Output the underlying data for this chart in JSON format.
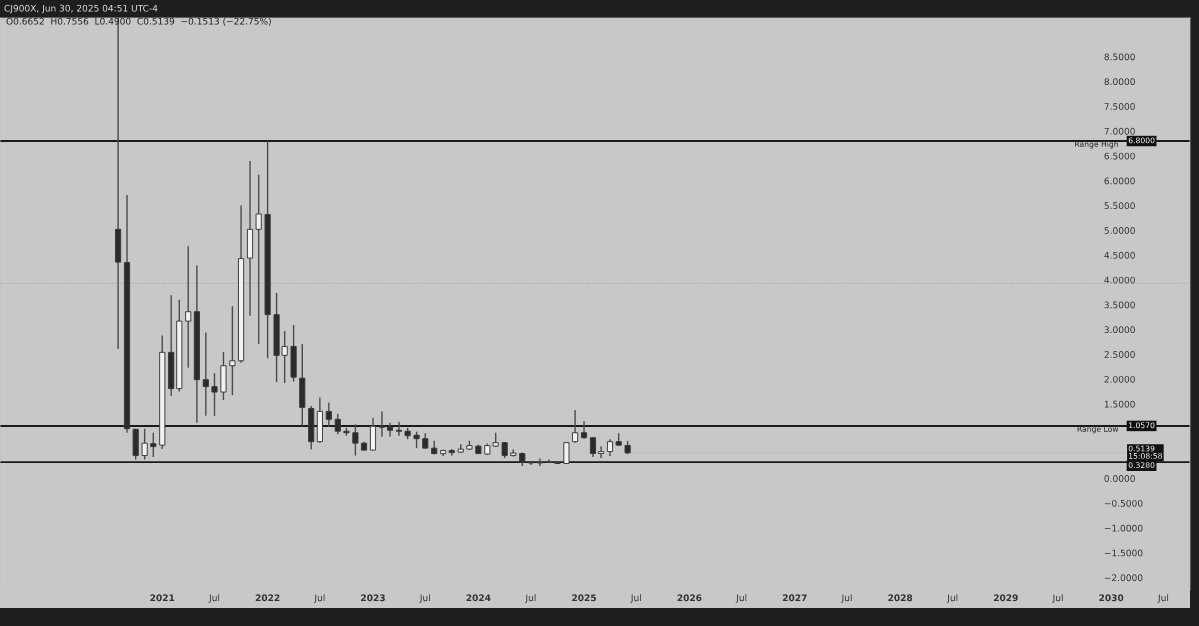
{
  "chart_data": {
    "type": "candlestick",
    "annotations": [
      "CJ900X, Jun 30, 2025 04:51 UTC-4",
      "O0.6652  H0.7556  L0.4900  C0.5139  −0.1513 (−22.75%)",
      {
        "text": "6.8000",
        "x": "2030-03",
        "y": 6.8
      },
      {
        "text": "1.0570",
        "x": "2030-03",
        "y": 1.057
      },
      {
        "text": "0.5139\n15:08:58",
        "x": "2025-06",
        "y": 0.5139
      },
      {
        "text": "0.3280",
        "x": "2030-03",
        "y": 0.328
      }
    ],
    "x": [
      "2020-08",
      "2020-09",
      "2020-10",
      "2020-11",
      "2020-12",
      "2021-01",
      "2021-02",
      "2021-03",
      "2021-04",
      "2021-05",
      "2021-06",
      "2021-07",
      "2021-08",
      "2021-09",
      "2021-10",
      "2021-11",
      "2021-12",
      "2022-01",
      "2022-02",
      "2022-03",
      "2022-04",
      "2022-05",
      "2022-06",
      "2022-07",
      "2022-08",
      "2022-09",
      "2022-10",
      "2022-11",
      "2022-12",
      "2023-01",
      "2023-02",
      "2023-03",
      "2023-04",
      "2023-05",
      "2023-06",
      "2023-07",
      "2023-08",
      "2023-09",
      "2023-10",
      "2023-11",
      "2023-12",
      "2024-01",
      "2024-02",
      "2024-03",
      "2024-04",
      "2024-05",
      "2024-06",
      "2024-07",
      "2024-08",
      "2024-09",
      "2024-10",
      "2024-11",
      "2024-12",
      "2025-01",
      "2025-02",
      "2025-03",
      "2025-04",
      "2025-05",
      "2025-06"
    ],
    "ohlc": [
      [
        5.02,
        9.28,
        2.61,
        4.36
      ],
      [
        4.35,
        5.71,
        0.92,
        1.0
      ],
      [
        0.99,
        1.0,
        0.38,
        0.46
      ],
      [
        0.46,
        1.0,
        0.38,
        0.71
      ],
      [
        0.7,
        0.92,
        0.43,
        0.64
      ],
      [
        0.67,
        2.88,
        0.59,
        2.54
      ],
      [
        2.54,
        3.69,
        1.66,
        1.81
      ],
      [
        1.81,
        3.6,
        1.75,
        3.17
      ],
      [
        3.17,
        4.68,
        2.23,
        3.36
      ],
      [
        3.36,
        4.29,
        1.12,
        1.99
      ],
      [
        1.99,
        2.94,
        1.26,
        1.85
      ],
      [
        1.85,
        2.12,
        1.26,
        1.74
      ],
      [
        1.74,
        2.55,
        1.58,
        2.27
      ],
      [
        2.27,
        3.47,
        1.68,
        2.37
      ],
      [
        2.37,
        5.5,
        2.33,
        4.43
      ],
      [
        4.44,
        6.4,
        3.28,
        5.02
      ],
      [
        5.02,
        6.12,
        2.71,
        5.33
      ],
      [
        5.32,
        6.8,
        2.42,
        3.3
      ],
      [
        3.3,
        3.74,
        1.94,
        2.48
      ],
      [
        2.48,
        2.97,
        1.92,
        2.66
      ],
      [
        2.66,
        3.09,
        1.95,
        2.04
      ],
      [
        2.02,
        2.71,
        1.05,
        1.43
      ],
      [
        1.41,
        1.46,
        0.58,
        0.74
      ],
      [
        0.74,
        1.63,
        0.72,
        1.35
      ],
      [
        1.35,
        1.53,
        1.04,
        1.19
      ],
      [
        1.19,
        1.3,
        0.89,
        0.95
      ],
      [
        0.95,
        1.02,
        0.86,
        0.92
      ],
      [
        0.92,
        1.09,
        0.46,
        0.71
      ],
      [
        0.71,
        0.74,
        0.56,
        0.57
      ],
      [
        0.57,
        1.22,
        0.56,
        1.05
      ],
      [
        1.05,
        1.35,
        0.84,
        1.03
      ],
      [
        1.03,
        1.12,
        0.84,
        0.97
      ],
      [
        0.97,
        1.14,
        0.86,
        0.95
      ],
      [
        0.95,
        1.02,
        0.79,
        0.86
      ],
      [
        0.87,
        0.94,
        0.61,
        0.8
      ],
      [
        0.8,
        0.91,
        0.6,
        0.61
      ],
      [
        0.61,
        0.76,
        0.48,
        0.5
      ],
      [
        0.5,
        0.58,
        0.45,
        0.56
      ],
      [
        0.56,
        0.59,
        0.46,
        0.52
      ],
      [
        0.53,
        0.69,
        0.51,
        0.59
      ],
      [
        0.59,
        0.76,
        0.57,
        0.66
      ],
      [
        0.65,
        0.68,
        0.49,
        0.5
      ],
      [
        0.49,
        0.7,
        0.47,
        0.66
      ],
      [
        0.65,
        0.92,
        0.63,
        0.72
      ],
      [
        0.72,
        0.73,
        0.41,
        0.46
      ],
      [
        0.46,
        0.58,
        0.44,
        0.51
      ],
      [
        0.5,
        0.52,
        0.25,
        0.33
      ],
      [
        0.33,
        0.34,
        0.27,
        0.31
      ],
      [
        0.31,
        0.4,
        0.25,
        0.32
      ],
      [
        0.32,
        0.38,
        0.31,
        0.34
      ],
      [
        0.32,
        0.34,
        0.29,
        0.3
      ],
      [
        0.3,
        0.73,
        0.29,
        0.72
      ],
      [
        0.74,
        1.38,
        0.72,
        0.92
      ],
      [
        0.92,
        1.15,
        0.8,
        0.82
      ],
      [
        0.82,
        0.82,
        0.43,
        0.5
      ],
      [
        0.5,
        0.65,
        0.41,
        0.54
      ],
      [
        0.54,
        0.79,
        0.45,
        0.74
      ],
      [
        0.74,
        0.91,
        0.66,
        0.67
      ],
      [
        0.6652,
        0.7556,
        0.49,
        0.5139
      ]
    ],
    "xlim": [
      "2019-06-19",
      "2030-10-01"
    ],
    "xticks": [
      {
        "value": "2021-01",
        "label": "2021"
      },
      {
        "value": "2021-07",
        "label": "Jul"
      },
      {
        "value": "2022-01",
        "label": "2022"
      },
      {
        "value": "2022-07",
        "label": "Jul"
      },
      {
        "value": "2023-01",
        "label": "2023"
      },
      {
        "value": "2023-07",
        "label": "Jul"
      },
      {
        "value": "2024-01",
        "label": "2024"
      },
      {
        "value": "2024-07",
        "label": "Jul"
      },
      {
        "value": "2025-01",
        "label": "2025"
      },
      {
        "value": "2025-07",
        "label": "Jul"
      },
      {
        "value": "2026-01",
        "label": "2026"
      },
      {
        "value": "2026-07",
        "label": "Jul"
      },
      {
        "value": "2027-01",
        "label": "2027"
      },
      {
        "value": "2027-07",
        "label": "Jul"
      },
      {
        "value": "2028-01",
        "label": "2028"
      },
      {
        "value": "2028-07",
        "label": "Jul"
      },
      {
        "value": "2029-01",
        "label": "2029"
      },
      {
        "value": "2029-07",
        "label": "Jul"
      },
      {
        "value": "2030-01",
        "label": "2030"
      },
      {
        "value": "2030-07",
        "label": "Jul"
      }
    ],
    "ylim": [
      -2.25,
      9.28
    ],
    "yticks": [
      {
        "value": -2,
        "label": "−2.0000"
      },
      {
        "value": -1.5,
        "label": "−1.5000"
      },
      {
        "value": -1,
        "label": "−1.0000"
      },
      {
        "value": -0.5,
        "label": "−0.5000"
      },
      {
        "value": 0,
        "label": "0.0000"
      },
      {
        "value": 1.5,
        "label": "1.5000"
      },
      {
        "value": 2,
        "label": "2.0000"
      },
      {
        "value": 2.5,
        "label": "2.5000"
      },
      {
        "value": 3,
        "label": "3.0000"
      },
      {
        "value": 3.5,
        "label": "3.5000"
      },
      {
        "value": 4,
        "label": "4.0000"
      },
      {
        "value": 4.5,
        "label": "4.5000"
      },
      {
        "value": 5,
        "label": "5.0000"
      },
      {
        "value": 5.5,
        "label": "5.5000"
      },
      {
        "value": 6,
        "label": "6.0000"
      },
      {
        "value": 6.5,
        "label": "6.5000"
      },
      {
        "value": 7,
        "label": "7.0000"
      },
      {
        "value": 7.5,
        "label": "7.5000"
      },
      {
        "value": 8,
        "label": "8.0000"
      },
      {
        "value": 8.5,
        "label": "8.5000"
      }
    ],
    "ref_lines": [
      {
        "axis": "y",
        "value": 6.8,
        "label": "Range High",
        "color": "#1a1a1a",
        "line_style": "solid"
      },
      {
        "axis": "y",
        "value": 1.057,
        "label": "Range Low",
        "color": "#1a1a1a",
        "line_style": "solid"
      },
      {
        "axis": "y",
        "value": 0.328,
        "label": null,
        "color": "#1a1a1a",
        "line_style": "solid"
      },
      {
        "axis": "y",
        "value": 3.93,
        "label": null,
        "color": "#a9a9a9",
        "line_style": "dotted"
      }
    ],
    "grid": false,
    "legend": false
  }
}
